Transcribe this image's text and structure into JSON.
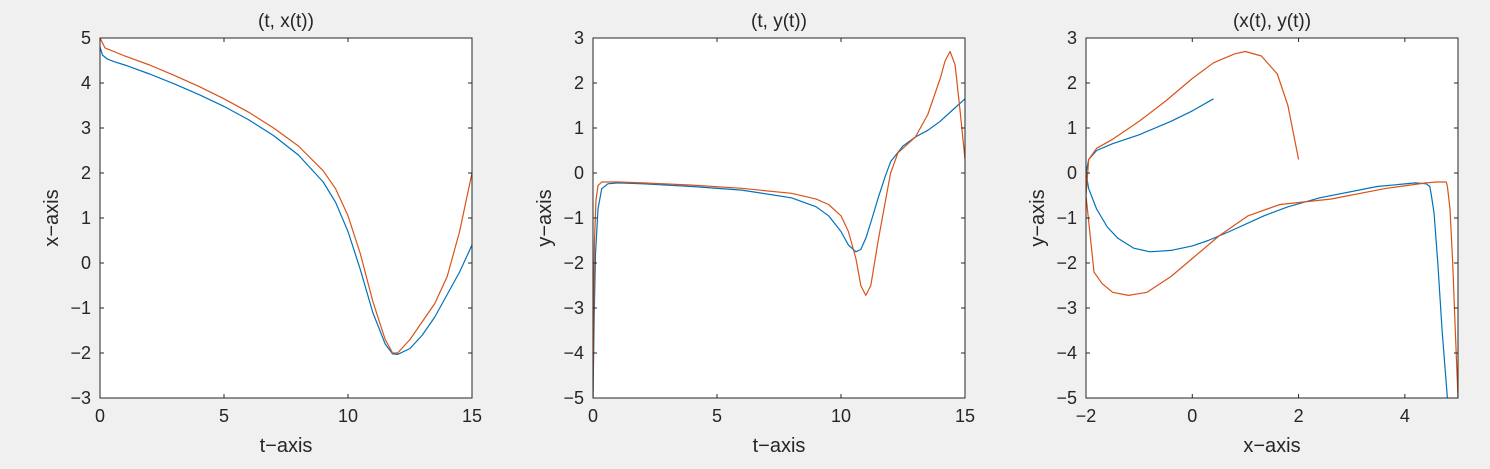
{
  "chart_data": [
    {
      "type": "line",
      "title": "(t, x(t))",
      "xlabel": "t−axis",
      "ylabel": "x−axis",
      "xlim": [
        0,
        15
      ],
      "ylim": [
        -3,
        5
      ],
      "xticks": [
        0,
        5,
        10,
        15
      ],
      "yticks": [
        -3,
        -2,
        -1,
        0,
        1,
        2,
        3,
        4,
        5
      ],
      "grid": false,
      "series": [
        {
          "color": "#0072bd",
          "x": [
            0,
            0.1,
            0.3,
            0.6,
            1,
            2,
            3,
            4,
            5,
            6,
            7,
            8,
            9,
            9.5,
            10,
            10.5,
            11,
            11.5,
            11.8,
            12,
            12.5,
            13,
            13.5,
            14,
            14.5,
            15
          ],
          "y": [
            4.8,
            4.62,
            4.53,
            4.47,
            4.4,
            4.2,
            3.98,
            3.74,
            3.48,
            3.18,
            2.83,
            2.4,
            1.8,
            1.35,
            0.7,
            -0.15,
            -1.1,
            -1.8,
            -2.02,
            -2.03,
            -1.9,
            -1.6,
            -1.2,
            -0.7,
            -0.2,
            0.4
          ]
        },
        {
          "color": "#d95319",
          "x": [
            0,
            0.2,
            1,
            2,
            3,
            4,
            5,
            6,
            7,
            8,
            9,
            9.5,
            10,
            10.5,
            11,
            11.5,
            11.8,
            12,
            12.5,
            13,
            13.5,
            14,
            14.5,
            15
          ],
          "y": [
            5.0,
            4.78,
            4.6,
            4.4,
            4.17,
            3.92,
            3.65,
            3.35,
            3.0,
            2.6,
            2.05,
            1.65,
            1.05,
            0.2,
            -0.85,
            -1.7,
            -2.0,
            -2.0,
            -1.7,
            -1.3,
            -0.9,
            -0.3,
            0.7,
            2.0
          ]
        }
      ]
    },
    {
      "type": "line",
      "title": "(t, y(t))",
      "xlabel": "t−axis",
      "ylabel": "y−axis",
      "xlim": [
        0,
        15
      ],
      "ylim": [
        -5,
        3
      ],
      "xticks": [
        0,
        5,
        10,
        15
      ],
      "yticks": [
        -5,
        -4,
        -3,
        -2,
        -1,
        0,
        1,
        2,
        3
      ],
      "grid": false,
      "series": [
        {
          "color": "#0072bd",
          "x": [
            0,
            0.05,
            0.1,
            0.2,
            0.35,
            0.6,
            1,
            2,
            4,
            6,
            8,
            9,
            9.5,
            10,
            10.3,
            10.6,
            10.8,
            11,
            11.2,
            11.5,
            11.8,
            12,
            12.5,
            13,
            13.5,
            14,
            14.5,
            15
          ],
          "y": [
            -5,
            -3.2,
            -1.8,
            -0.8,
            -0.35,
            -0.24,
            -0.22,
            -0.24,
            -0.3,
            -0.38,
            -0.55,
            -0.75,
            -0.95,
            -1.3,
            -1.6,
            -1.75,
            -1.7,
            -1.45,
            -1.1,
            -0.55,
            -0.05,
            0.25,
            0.6,
            0.8,
            0.95,
            1.15,
            1.4,
            1.65
          ]
        },
        {
          "color": "#d95319",
          "x": [
            0,
            0.03,
            0.06,
            0.12,
            0.2,
            0.35,
            0.6,
            1,
            2,
            4,
            6,
            8,
            9,
            9.5,
            10,
            10.3,
            10.6,
            10.8,
            11,
            11.2,
            11.5,
            11.8,
            12,
            12.3,
            12.7,
            13,
            13.5,
            14,
            14.2,
            14.4,
            14.6,
            14.8,
            15
          ],
          "y": [
            -5,
            -3,
            -1.5,
            -0.6,
            -0.28,
            -0.2,
            -0.2,
            -0.2,
            -0.22,
            -0.27,
            -0.34,
            -0.45,
            -0.58,
            -0.7,
            -0.95,
            -1.3,
            -1.9,
            -2.5,
            -2.72,
            -2.5,
            -1.5,
            -0.6,
            0.0,
            0.45,
            0.65,
            0.8,
            1.3,
            2.1,
            2.5,
            2.7,
            2.4,
            1.4,
            0.3
          ]
        }
      ]
    },
    {
      "type": "line",
      "title": "(x(t), y(t))",
      "xlabel": "x−axis",
      "ylabel": "y−axis",
      "xlim": [
        -2,
        5
      ],
      "ylim": [
        -5,
        3
      ],
      "xticks": [
        -2,
        0,
        2,
        4
      ],
      "yticks": [
        -5,
        -4,
        -3,
        -2,
        -1,
        0,
        1,
        2,
        3
      ],
      "grid": false,
      "series": [
        {
          "color": "#0072bd",
          "x": [
            4.8,
            4.7,
            4.62,
            4.55,
            4.5,
            4.47,
            4.4,
            4.2,
            3.48,
            2.4,
            1.8,
            1.35,
            0.7,
            0.3,
            0,
            -0.4,
            -0.8,
            -1.1,
            -1.4,
            -1.6,
            -1.8,
            -1.95,
            -2.0,
            -1.95,
            -1.8,
            -1.5,
            -1.0,
            -0.4,
            0.0,
            0.4
          ],
          "y": [
            -5,
            -3.5,
            -2.0,
            -0.9,
            -0.5,
            -0.3,
            -0.24,
            -0.22,
            -0.3,
            -0.55,
            -0.75,
            -0.95,
            -1.3,
            -1.5,
            -1.62,
            -1.72,
            -1.75,
            -1.67,
            -1.45,
            -1.2,
            -0.8,
            -0.35,
            0.0,
            0.3,
            0.5,
            0.65,
            0.85,
            1.15,
            1.38,
            1.65
          ]
        },
        {
          "color": "#d95319",
          "x": [
            5.0,
            4.95,
            4.9,
            4.85,
            4.8,
            4.78,
            4.6,
            4.4,
            3.65,
            2.6,
            1.65,
            1.05,
            0.5,
            0,
            -0.4,
            -0.85,
            -1.2,
            -1.5,
            -1.7,
            -1.85,
            -2.0,
            -1.95,
            -1.8,
            -1.5,
            -1.0,
            -0.5,
            0.0,
            0.4,
            0.8,
            1.0,
            1.3,
            1.6,
            1.8,
            2.0
          ],
          "y": [
            -5,
            -3.5,
            -2.0,
            -0.8,
            -0.3,
            -0.2,
            -0.2,
            -0.22,
            -0.34,
            -0.58,
            -0.7,
            -0.95,
            -1.4,
            -1.9,
            -2.3,
            -2.65,
            -2.72,
            -2.65,
            -2.45,
            -2.2,
            -0.5,
            0.3,
            0.55,
            0.75,
            1.15,
            1.6,
            2.1,
            2.45,
            2.65,
            2.7,
            2.6,
            2.2,
            1.5,
            0.3
          ]
        }
      ]
    }
  ]
}
